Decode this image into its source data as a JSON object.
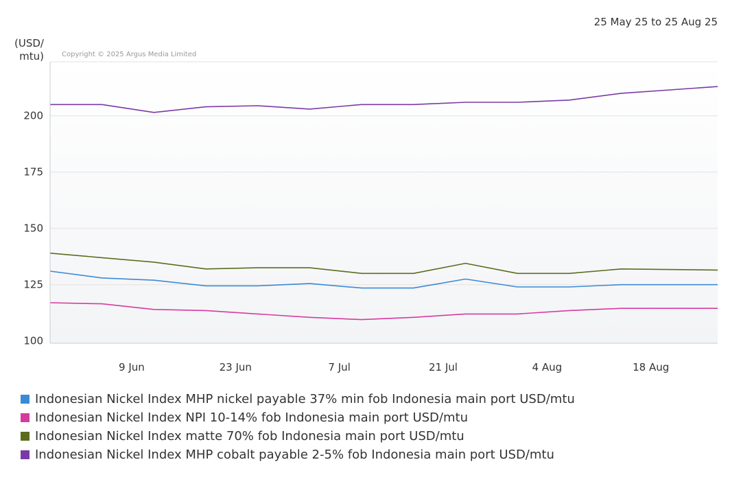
{
  "chart_data": {
    "type": "line",
    "date_range_label": "25 May 25 to 25 Aug 25",
    "copyright": "Copyright © 2025 Argus Media Limited",
    "ylabel_lines": [
      "(USD/",
      "mtu)"
    ],
    "ylim": [
      99,
      224
    ],
    "y_ticks": [
      100,
      125,
      150,
      175,
      200
    ],
    "x_range": [
      "2025-05-29",
      "2025-08-27"
    ],
    "x_ticks": [
      {
        "label": "9 Jun",
        "date": "2025-06-09"
      },
      {
        "label": "23 Jun",
        "date": "2025-06-23"
      },
      {
        "label": "7 Jul",
        "date": "2025-07-07"
      },
      {
        "label": "21 Jul",
        "date": "2025-07-21"
      },
      {
        "label": "4 Aug",
        "date": "2025-08-04"
      },
      {
        "label": "18 Aug",
        "date": "2025-08-18"
      }
    ],
    "x": [
      "2025-05-29",
      "2025-06-05",
      "2025-06-12",
      "2025-06-19",
      "2025-06-26",
      "2025-07-03",
      "2025-07-10",
      "2025-07-17",
      "2025-07-24",
      "2025-07-31",
      "2025-08-07",
      "2025-08-14",
      "2025-08-27"
    ],
    "grid": true,
    "legend_position": "bottom",
    "series": [
      {
        "name": "Indonesian Nickel Index MHP nickel payable 37% min fob Indonesia main port USD/mtu",
        "color": "#3a8ad6",
        "values": [
          131,
          128,
          127,
          124.5,
          124.5,
          125.5,
          123.5,
          123.5,
          127.5,
          124,
          124,
          125,
          125
        ]
      },
      {
        "name": "Indonesian Nickel Index NPI 10-14% fob Indonesia main port USD/mtu",
        "color": "#d63aa0",
        "values": [
          117,
          116.5,
          114,
          113.5,
          112,
          110.5,
          109.5,
          110.5,
          112,
          112,
          113.5,
          114.5,
          114.5
        ]
      },
      {
        "name": "Indonesian Nickel Index matte 70% fob Indonesia main port USD/mtu",
        "color": "#5c6b1e",
        "values": [
          139,
          137,
          135,
          132,
          132.5,
          132.5,
          130,
          130,
          134.5,
          130,
          130,
          132,
          131.5
        ]
      },
      {
        "name": "Indonesian Nickel Index MHP cobalt payable 2-5% fob Indonesia main port USD/mtu",
        "color": "#7a3aa6",
        "values": [
          205,
          205,
          201.5,
          204,
          204.5,
          203,
          205,
          205,
          206,
          206,
          207,
          210,
          213
        ]
      }
    ]
  },
  "colors": {
    "plot_bg_top": "#ffffff",
    "plot_bg_bottom": "#f3f4f6",
    "grid": "#e2e2e2",
    "axis": "#c9cdd3"
  }
}
